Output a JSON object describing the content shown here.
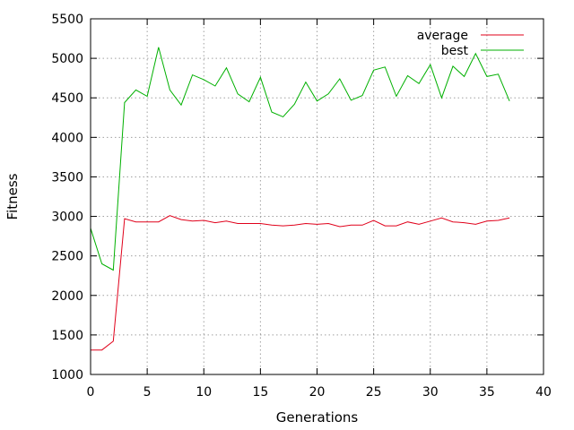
{
  "chart_data": {
    "type": "line",
    "xlabel": "Generations",
    "ylabel": "Fitness",
    "xlim": [
      0,
      40
    ],
    "ylim": [
      1000,
      5500
    ],
    "xticks": [
      0,
      5,
      10,
      15,
      20,
      25,
      30,
      35,
      40
    ],
    "yticks": [
      1000,
      1500,
      2000,
      2500,
      3000,
      3500,
      4000,
      4500,
      5000,
      5500
    ],
    "grid": true,
    "legend_position": "top-right",
    "x": [
      0,
      1,
      2,
      3,
      4,
      5,
      6,
      7,
      8,
      9,
      10,
      11,
      12,
      13,
      14,
      15,
      16,
      17,
      18,
      19,
      20,
      21,
      22,
      23,
      24,
      25,
      26,
      27,
      28,
      29,
      30,
      31,
      32,
      33,
      34,
      35,
      36,
      37
    ],
    "series": [
      {
        "name": "average",
        "color": "#e0001a",
        "values": [
          1310,
          1310,
          1420,
          2970,
          2930,
          2930,
          2930,
          3010,
          2960,
          2940,
          2950,
          2920,
          2940,
          2910,
          2910,
          2910,
          2890,
          2880,
          2890,
          2910,
          2900,
          2910,
          2870,
          2890,
          2890,
          2950,
          2880,
          2880,
          2930,
          2900,
          2940,
          2980,
          2930,
          2920,
          2900,
          2940,
          2950,
          2980
        ]
      },
      {
        "name": "best",
        "color": "#00b000",
        "values": [
          2850,
          2400,
          2320,
          4440,
          4600,
          4520,
          5140,
          4600,
          4410,
          4790,
          4730,
          4650,
          4880,
          4550,
          4450,
          4760,
          4320,
          4260,
          4420,
          4700,
          4460,
          4550,
          4740,
          4470,
          4530,
          4850,
          4890,
          4520,
          4780,
          4680,
          4920,
          4500,
          4900,
          4770,
          5060,
          4770,
          4800,
          4460
        ]
      }
    ]
  }
}
